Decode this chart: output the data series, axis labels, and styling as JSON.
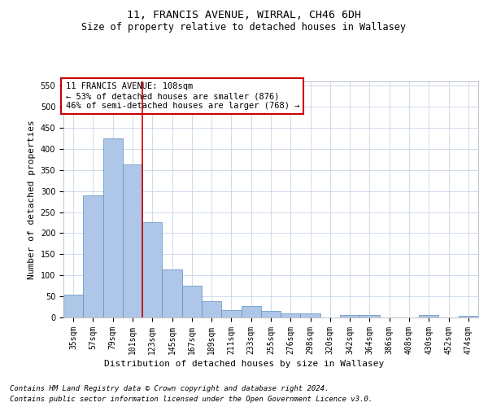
{
  "title": "11, FRANCIS AVENUE, WIRRAL, CH46 6DH",
  "subtitle": "Size of property relative to detached houses in Wallasey",
  "xlabel": "Distribution of detached houses by size in Wallasey",
  "ylabel": "Number of detached properties",
  "footer1": "Contains HM Land Registry data © Crown copyright and database right 2024.",
  "footer2": "Contains public sector information licensed under the Open Government Licence v3.0.",
  "categories": [
    "35sqm",
    "57sqm",
    "79sqm",
    "101sqm",
    "123sqm",
    "145sqm",
    "167sqm",
    "189sqm",
    "211sqm",
    "233sqm",
    "255sqm",
    "276sqm",
    "298sqm",
    "320sqm",
    "342sqm",
    "364sqm",
    "386sqm",
    "408sqm",
    "430sqm",
    "452sqm",
    "474sqm"
  ],
  "values": [
    55,
    290,
    425,
    363,
    225,
    113,
    75,
    38,
    17,
    28,
    15,
    10,
    10,
    0,
    5,
    5,
    0,
    0,
    5,
    0,
    3
  ],
  "bar_color": "#aec6e8",
  "bar_edge_color": "#5a8fc0",
  "vline_x": 3.5,
  "vline_color": "#cc0000",
  "annotation_line1": "11 FRANCIS AVENUE: 108sqm",
  "annotation_line2": "← 53% of detached houses are smaller (876)",
  "annotation_line3": "46% of semi-detached houses are larger (768) →",
  "annotation_box_color": "#cc0000",
  "ylim": [
    0,
    560
  ],
  "yticks": [
    0,
    50,
    100,
    150,
    200,
    250,
    300,
    350,
    400,
    450,
    500,
    550
  ],
  "bg_color": "#ffffff",
  "grid_color": "#c8d4e8",
  "title_fontsize": 9.5,
  "subtitle_fontsize": 8.5,
  "axis_label_fontsize": 8,
  "tick_fontsize": 7,
  "annotation_fontsize": 7.5,
  "footer_fontsize": 6.5
}
